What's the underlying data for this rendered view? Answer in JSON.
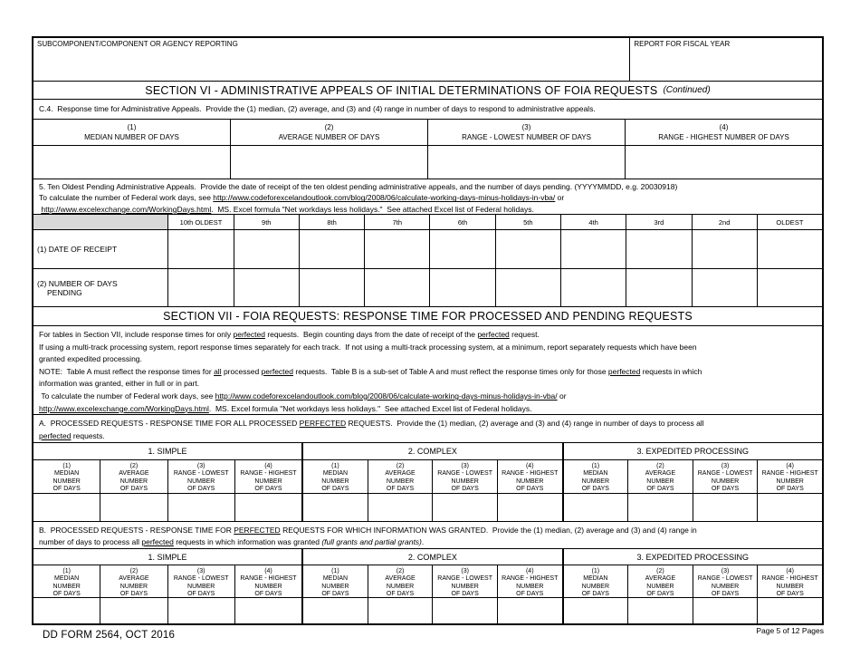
{
  "header": {
    "subcomponent_label": "SUBCOMPONENT/COMPONENT OR AGENCY REPORTING",
    "subcomponent_value": "",
    "fiscal_year_label": "REPORT FOR FISCAL YEAR",
    "fiscal_year_value": ""
  },
  "section6": {
    "title": "SECTION VI - ADMINISTRATIVE APPEALS OF INITIAL DETERMINATIONS OF FOIA REQUESTS",
    "title_suffix": "(Continued)",
    "c4_text": "C.4.  Response time for Administrative Appeals.  Provide the (1) median, (2) average, and (3) and (4) range in number of days to respond to administrative appeals.",
    "response_table": {
      "columns": [
        {
          "num": "(1)",
          "label": "MEDIAN NUMBER OF DAYS"
        },
        {
          "num": "(2)",
          "label": "AVERAGE NUMBER OF DAYS"
        },
        {
          "num": "(3)",
          "label": "RANGE - LOWEST NUMBER OF DAYS"
        },
        {
          "num": "(4)",
          "label": "RANGE - HIGHEST NUMBER OF DAYS"
        }
      ],
      "values": [
        "",
        "",
        "",
        ""
      ]
    },
    "item5_lines": [
      [
        {
          "t": "5. Ten Oldest Pending Administrative Appeals.  Provide the date of receipt of the ten oldest pending administrative appeals, and the number of days pending. (YYYYMMDD, e.g. 20030918)"
        }
      ],
      [
        {
          "t": "To calculate the number of Federal work days, see "
        },
        {
          "t": "http://www.codeforexcelandoutlook.com/blog/2008/06/calculate-working-days-minus-holidays-in-vba/",
          "l": true
        },
        {
          "t": " or"
        }
      ],
      [
        {
          "t": " "
        },
        {
          "t": "http://www.excelexchange.com/WorkingDays.html",
          "l": true
        },
        {
          "t": ".  MS. Excel formula \"Net workdays less holidays.\"  See attached Excel list of Federal holidays."
        }
      ]
    ],
    "oldest_table": {
      "columns": [
        "10th OLDEST",
        "9th",
        "8th",
        "7th",
        "6th",
        "5th",
        "4th",
        "3rd",
        "2nd",
        "OLDEST"
      ],
      "rows": [
        {
          "label_lines": [
            "(1) DATE OF RECEIPT"
          ],
          "values": [
            "",
            "",
            "",
            "",
            "",
            "",
            "",
            "",
            "",
            ""
          ]
        },
        {
          "label_lines": [
            "(2) NUMBER OF DAYS",
            "PENDING"
          ],
          "values": [
            "",
            "",
            "",
            "",
            "",
            "",
            "",
            "",
            "",
            ""
          ]
        }
      ]
    }
  },
  "section7": {
    "title": "SECTION VII - FOIA REQUESTS: RESPONSE TIME FOR PROCESSED AND PENDING REQUESTS",
    "intro_lines": [
      [
        {
          "t": "For tables in Section VII, include response times for only "
        },
        {
          "t": "perfected",
          "u": true
        },
        {
          "t": " requests.  Begin counting days from the date of receipt of the "
        },
        {
          "t": "perfected",
          "u": true
        },
        {
          "t": " request."
        }
      ],
      [
        {
          "t": "If using a multi-track processing system, report response times separately for each track.  If not using a multi-track processing system, at a minimum, report separately requests which have been"
        }
      ],
      [
        {
          "t": "granted expedited processing."
        }
      ],
      [
        {
          "t": "NOTE:  Table A must reflect the response times for "
        },
        {
          "t": "all",
          "u": true
        },
        {
          "t": " processed "
        },
        {
          "t": "perfected",
          "u": true
        },
        {
          "t": " requests.  Table B is a sub-set of Table A and must reflect the response times only for those "
        },
        {
          "t": "perfected",
          "u": true
        },
        {
          "t": " requests in which"
        }
      ],
      [
        {
          "t": "information was granted, either in full or in part."
        }
      ],
      [
        {
          "t": " To calculate the number of Federal work days, see "
        },
        {
          "t": "http://www.codeforexcelandoutlook.com/blog/2008/06/calculate-working-days-minus-holidays-in-vba/",
          "l": true
        },
        {
          "t": " or"
        }
      ],
      [
        {
          "t": "http://www.excelexchange.com/WorkingDays.html",
          "l": true
        },
        {
          "t": ".  MS. Excel formula \"Net workdays less holidays.\"  See attached Excel list of Federal holidays."
        }
      ]
    ],
    "tableA": {
      "heading_lines": [
        [
          {
            "t": "A.  PROCESSED REQUESTS - RESPONSE TIME FOR ALL PROCESSED "
          },
          {
            "t": "PERFECTED",
            "u": true
          },
          {
            "t": " REQUESTS.  Provide the (1) median, (2) average and (3) and (4) range in number of days to process all"
          }
        ],
        [
          {
            "t": "perfected",
            "u": true
          },
          {
            "t": " requests."
          }
        ]
      ],
      "group_titles": [
        "1. SIMPLE",
        "2. COMPLEX",
        "3. EXPEDITED PROCESSING"
      ],
      "subcolumns": [
        {
          "num": "(1)",
          "lines": [
            "MEDIAN",
            "NUMBER",
            "OF DAYS"
          ]
        },
        {
          "num": "(2)",
          "lines": [
            "AVERAGE",
            "NUMBER",
            "OF DAYS"
          ]
        },
        {
          "num": "(3)",
          "lines": [
            "RANGE - LOWEST",
            "NUMBER",
            "OF DAYS"
          ]
        },
        {
          "num": "(4)",
          "lines": [
            "RANGE - HIGHEST",
            "NUMBER",
            "OF DAYS"
          ]
        }
      ],
      "values": [
        [
          "",
          "",
          "",
          ""
        ],
        [
          "",
          "",
          "",
          ""
        ],
        [
          "",
          "",
          "",
          ""
        ]
      ]
    },
    "tableB": {
      "heading_lines": [
        [
          {
            "t": "B.  PROCESSED REQUESTS - RESPONSE TIME FOR "
          },
          {
            "t": "PERFECTED",
            "u": true
          },
          {
            "t": " REQUESTS FOR WHICH INFORMATION WAS GRANTED.  Provide the (1) median, (2) average and (3) and (4) range in"
          }
        ],
        [
          {
            "t": "number of days to process all "
          },
          {
            "t": "perfected",
            "u": true
          },
          {
            "t": " requests in which information was granted "
          },
          {
            "t": "(full grants and partial grants)",
            "i": true
          },
          {
            "t": "."
          }
        ]
      ],
      "group_titles": [
        "1. SIMPLE",
        "2. COMPLEX",
        "3. EXPEDITED PROCESSING"
      ],
      "subcolumns": [
        {
          "num": "(1)",
          "lines": [
            "MEDIAN",
            "NUMBER",
            "OF DAYS"
          ]
        },
        {
          "num": "(2)",
          "lines": [
            "AVERAGE",
            "NUMBER",
            "OF DAYS"
          ]
        },
        {
          "num": "(3)",
          "lines": [
            "RANGE - LOWEST",
            "NUMBER",
            "OF DAYS"
          ]
        },
        {
          "num": "(4)",
          "lines": [
            "RANGE - HIGHEST",
            "NUMBER",
            "OF DAYS"
          ]
        }
      ],
      "values": [
        [
          "",
          "",
          "",
          ""
        ],
        [
          "",
          "",
          "",
          ""
        ],
        [
          "",
          "",
          "",
          ""
        ]
      ]
    }
  },
  "footer": {
    "form_id": "DD FORM 2564, OCT 2016",
    "page": "Page 5 of 12 Pages"
  }
}
